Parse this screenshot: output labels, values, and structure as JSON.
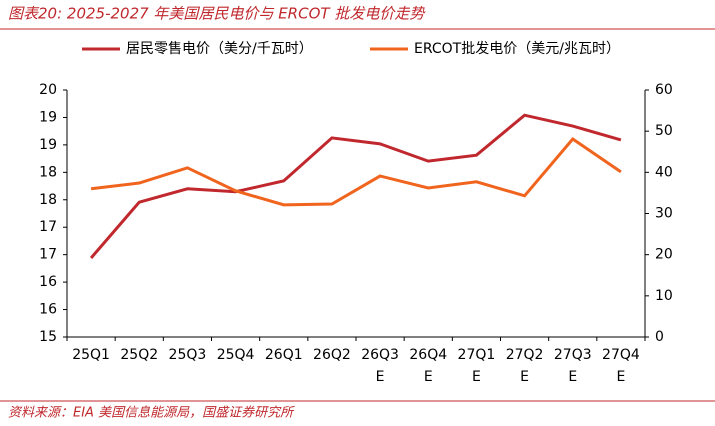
{
  "chart_data": {
    "type": "line",
    "title": "图表20:  2025-2027 年美国居民电价与 ERCOT 批发电价走势",
    "source": "资料来源：EIA 美国信息能源局，国盛证券研究所",
    "categories": [
      "25Q1",
      "25Q2",
      "25Q3",
      "25Q4",
      "26Q1",
      "26Q2",
      "26Q3\nE",
      "26Q4\nE",
      "27Q1\nE",
      "27Q2\nE",
      "27Q3\nE",
      "27Q4\nE"
    ],
    "series": [
      {
        "name": "居民零售电价（美分/千瓦时）",
        "color": "#C0282D",
        "values": [
          16.6,
          17.73,
          18.0,
          17.94,
          18.16,
          19.03,
          18.91,
          18.56,
          18.68,
          19.49,
          19.27,
          18.99
        ]
      },
      {
        "name": "ERCOT批发电价（美元/兆瓦时）",
        "color": "#F0641E",
        "axis": "y2",
        "values": [
          36.0,
          37.4,
          41.1,
          35.5,
          32.1,
          32.3,
          39.1,
          36.2,
          37.7,
          34.3,
          48.1,
          40.1
        ]
      }
    ],
    "ylim": [
      15,
      20
    ],
    "yticks": [
      15,
      {
        "value": 15.556,
        "label": "16"
      },
      {
        "value": 16.111,
        "label": "16"
      },
      {
        "value": 16.667,
        "label": "17"
      },
      {
        "value": 17.222,
        "label": "17"
      },
      {
        "value": 17.778,
        "label": "18"
      },
      {
        "value": 18.333,
        "label": "18"
      },
      {
        "value": 18.889,
        "label": "19"
      },
      {
        "value": 19.444,
        "label": "19"
      },
      20
    ],
    "y2lim": [
      0,
      60
    ],
    "y2ticks": [
      0,
      10,
      20,
      30,
      40,
      50,
      60
    ],
    "grid": false
  }
}
